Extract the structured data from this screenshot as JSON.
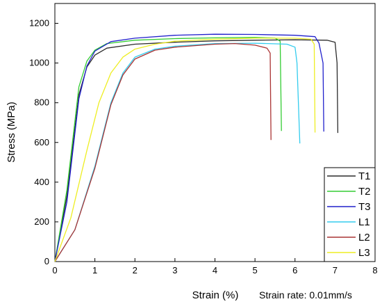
{
  "chart_data": {
    "type": "line",
    "title": "",
    "xlabel": "Strain (%)",
    "ylabel": "Stress (MPa)",
    "annotation": "Strain rate: 0.01mm/s",
    "xlim": [
      0,
      8
    ],
    "ylim": [
      0,
      1300
    ],
    "xticks": [
      0,
      1,
      2,
      3,
      4,
      5,
      6,
      7,
      8
    ],
    "yticks": [
      0,
      200,
      400,
      600,
      800,
      1000,
      1200
    ],
    "grid": false,
    "legend_position": "bottom-right",
    "series": [
      {
        "name": "T1",
        "color": "#2b2b2b",
        "points": [
          [
            0,
            0
          ],
          [
            0.3,
            330
          ],
          [
            0.6,
            840
          ],
          [
            0.8,
            980
          ],
          [
            1.0,
            1040
          ],
          [
            1.3,
            1075
          ],
          [
            2.0,
            1095
          ],
          [
            3.0,
            1105
          ],
          [
            4.0,
            1112
          ],
          [
            5.0,
            1115
          ],
          [
            6.0,
            1117
          ],
          [
            6.8,
            1115
          ],
          [
            7.0,
            1105
          ],
          [
            7.05,
            1000
          ],
          [
            7.07,
            648
          ]
        ]
      },
      {
        "name": "T2",
        "color": "#33cc33",
        "points": [
          [
            0,
            0
          ],
          [
            0.3,
            360
          ],
          [
            0.6,
            880
          ],
          [
            0.8,
            1010
          ],
          [
            1.0,
            1065
          ],
          [
            1.3,
            1098
          ],
          [
            2.0,
            1115
          ],
          [
            3.0,
            1123
          ],
          [
            4.0,
            1127
          ],
          [
            5.0,
            1129
          ],
          [
            5.5,
            1126
          ],
          [
            5.63,
            1110
          ],
          [
            5.66,
            658
          ]
        ]
      },
      {
        "name": "T3",
        "color": "#2020cc",
        "points": [
          [
            0,
            0
          ],
          [
            0.3,
            300
          ],
          [
            0.6,
            820
          ],
          [
            0.8,
            985
          ],
          [
            1.0,
            1060
          ],
          [
            1.4,
            1108
          ],
          [
            2.0,
            1125
          ],
          [
            3.0,
            1140
          ],
          [
            4.0,
            1145
          ],
          [
            5.0,
            1144
          ],
          [
            6.0,
            1140
          ],
          [
            6.5,
            1133
          ],
          [
            6.6,
            1100
          ],
          [
            6.7,
            1000
          ],
          [
            6.72,
            655
          ]
        ]
      },
      {
        "name": "L1",
        "color": "#33ccee",
        "points": [
          [
            0,
            0
          ],
          [
            0.5,
            160
          ],
          [
            1.0,
            480
          ],
          [
            1.4,
            800
          ],
          [
            1.7,
            950
          ],
          [
            2.0,
            1030
          ],
          [
            2.5,
            1070
          ],
          [
            3.0,
            1085
          ],
          [
            4.0,
            1098
          ],
          [
            5.0,
            1100
          ],
          [
            5.8,
            1095
          ],
          [
            6.0,
            1080
          ],
          [
            6.05,
            1000
          ],
          [
            6.12,
            595
          ]
        ]
      },
      {
        "name": "L2",
        "color": "#aa3333",
        "points": [
          [
            0,
            0
          ],
          [
            0.5,
            160
          ],
          [
            1.0,
            470
          ],
          [
            1.4,
            790
          ],
          [
            1.7,
            940
          ],
          [
            2.0,
            1020
          ],
          [
            2.5,
            1065
          ],
          [
            3.0,
            1080
          ],
          [
            4.0,
            1095
          ],
          [
            4.5,
            1098
          ],
          [
            5.0,
            1090
          ],
          [
            5.3,
            1075
          ],
          [
            5.38,
            1050
          ],
          [
            5.4,
            612
          ]
        ]
      },
      {
        "name": "L3",
        "color": "#eeee22",
        "points": [
          [
            0,
            0
          ],
          [
            0.4,
            220
          ],
          [
            0.8,
            560
          ],
          [
            1.1,
            800
          ],
          [
            1.4,
            950
          ],
          [
            1.7,
            1030
          ],
          [
            2.0,
            1070
          ],
          [
            2.5,
            1095
          ],
          [
            3.0,
            1110
          ],
          [
            4.0,
            1120
          ],
          [
            5.0,
            1125
          ],
          [
            6.0,
            1125
          ],
          [
            6.4,
            1120
          ],
          [
            6.48,
            1095
          ],
          [
            6.5,
            650
          ]
        ]
      }
    ]
  }
}
